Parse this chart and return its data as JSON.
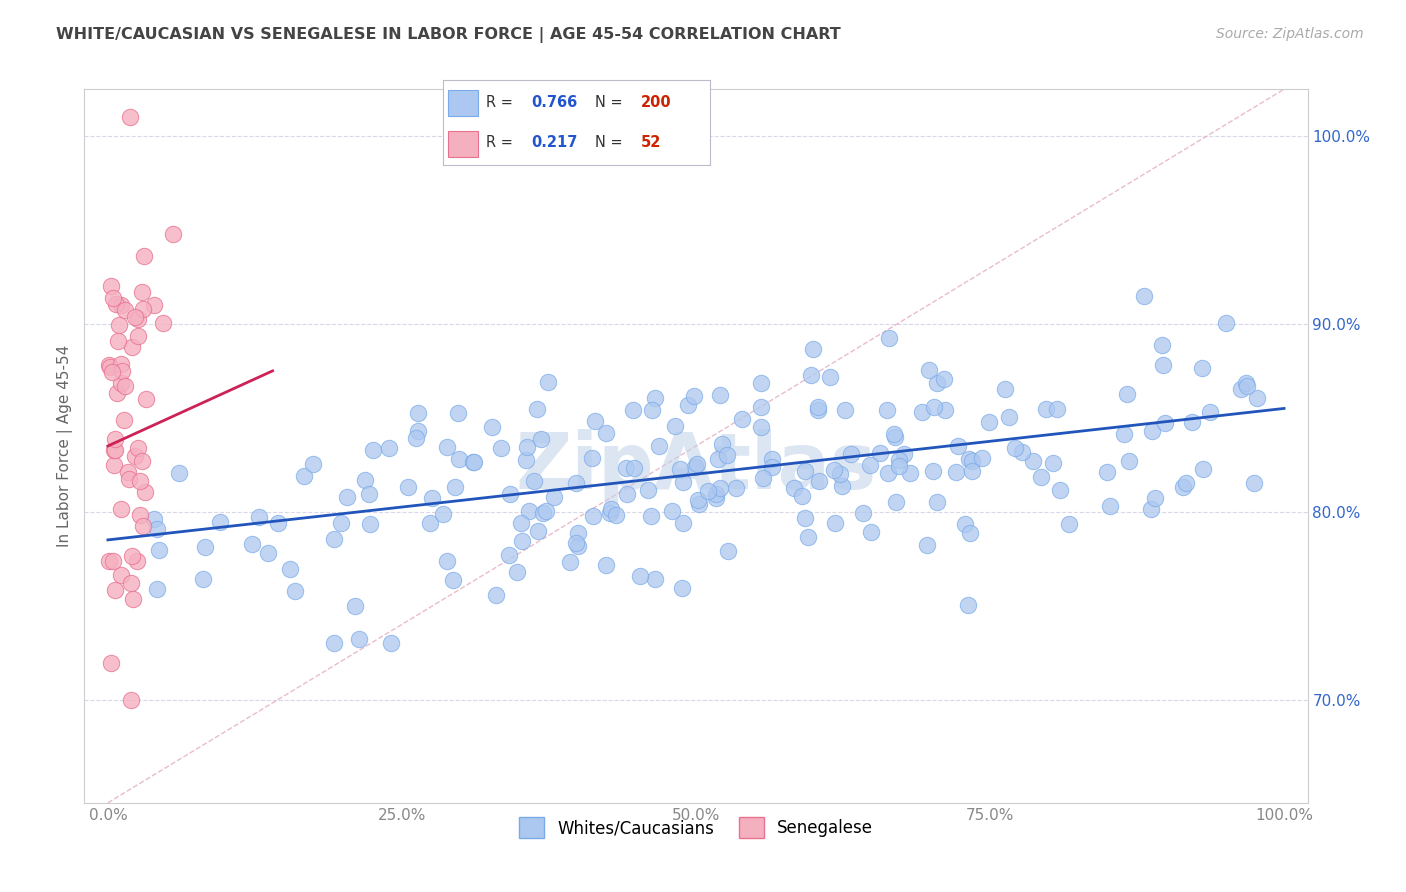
{
  "title": "WHITE/CAUCASIAN VS SENEGALESE IN LABOR FORCE | AGE 45-54 CORRELATION CHART",
  "source": "Source: ZipAtlas.com",
  "ylabel": "In Labor Force | Age 45-54",
  "watermark": "ZipAtlas",
  "xlim": [
    -0.02,
    1.02
  ],
  "ylim": [
    0.645,
    1.025
  ],
  "xticks": [
    0.0,
    0.25,
    0.5,
    0.75,
    1.0
  ],
  "xticklabels": [
    "0.0%",
    "25.0%",
    "50.0%",
    "75.0%",
    "100.0%"
  ],
  "ytick_positions": [
    0.7,
    0.8,
    0.9,
    1.0
  ],
  "ytick_labels": [
    "70.0%",
    "80.0%",
    "90.0%",
    "100.0%"
  ],
  "blue_R": 0.766,
  "blue_N": 200,
  "pink_R": 0.217,
  "pink_N": 52,
  "blue_color": "#adc8f0",
  "blue_edge": "#7aaae8",
  "pink_color": "#f5b0c0",
  "pink_edge": "#e87090",
  "blue_line_color": "#2255bb",
  "pink_line_color": "#cc2255",
  "legend_R_color": "#2255cc",
  "legend_N_color": "#cc2200",
  "background_color": "#ffffff",
  "grid_color": "#d8d8e8",
  "title_color": "#444444",
  "ylabel_color": "#666666",
  "ytick_color": "#3366cc",
  "watermark_color": "#c0d0e8",
  "figsize": [
    14.06,
    8.92
  ],
  "dpi": 100,
  "blue_line_x0": 0.0,
  "blue_line_y0": 0.785,
  "blue_line_x1": 1.0,
  "blue_line_y1": 0.855,
  "pink_line_x0": 0.0,
  "pink_line_y0": 0.835,
  "pink_line_x1": 0.14,
  "pink_line_y1": 0.875
}
